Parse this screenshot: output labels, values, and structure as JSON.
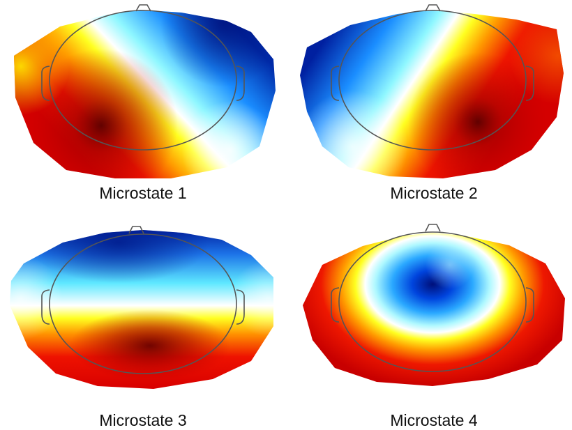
{
  "maps": [
    {
      "label": "Microstate 1"
    },
    {
      "label": "Microstate 2"
    },
    {
      "label": "Microstate 3"
    },
    {
      "label": "Microstate 4"
    }
  ],
  "colors": {
    "positive_peak": "#7a0000",
    "positive": "#e00000",
    "warm": "#ff8a00",
    "yellow": "#ffff00",
    "zero": "#ffffff",
    "cool": "#5ff0ff",
    "negative": "#0060ff",
    "negative_peak": "#00007a",
    "head_outline": "#555555"
  }
}
